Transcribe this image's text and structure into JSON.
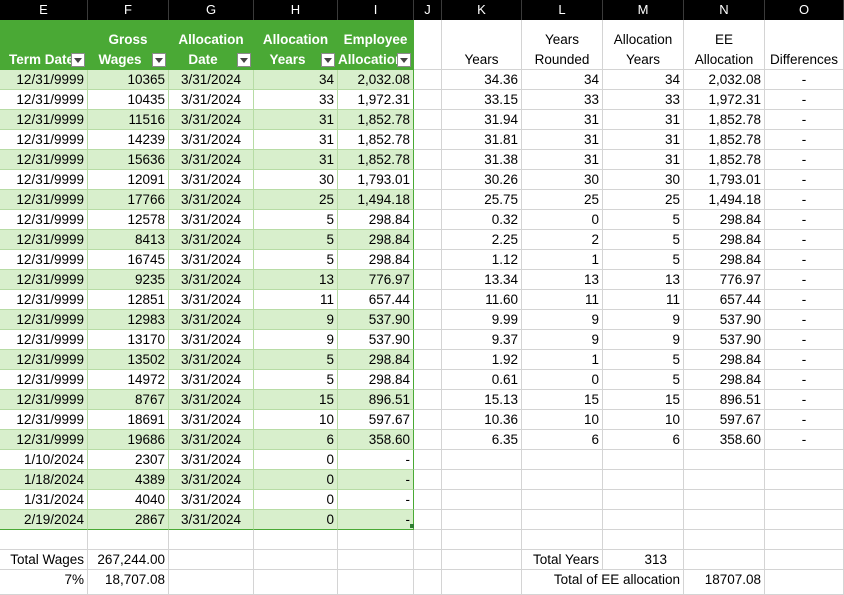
{
  "column_letters": [
    "E",
    "F",
    "G",
    "H",
    "I",
    "J",
    "K",
    "L",
    "M",
    "N",
    "O"
  ],
  "table_headers": [
    {
      "line1": "",
      "line2": "Term Date"
    },
    {
      "line1": "Gross",
      "line2": "Wages"
    },
    {
      "line1": "Allocation",
      "line2": "Date"
    },
    {
      "line1": "Allocation",
      "line2": "Years"
    },
    {
      "line1": "Employee",
      "line2": "Allocation"
    }
  ],
  "side_headers": [
    {
      "line1": "",
      "line2": "Years"
    },
    {
      "line1": "Years",
      "line2": "Rounded"
    },
    {
      "line1": "Allocation",
      "line2": "Years"
    },
    {
      "line1": "EE",
      "line2": "Allocation"
    },
    {
      "line1": "",
      "line2": "Differences"
    }
  ],
  "rows": [
    [
      "12/31/9999",
      "10365",
      "3/31/2024",
      "34",
      "2,032.08",
      "34.36",
      "34",
      "34",
      "2,032.08",
      "-"
    ],
    [
      "12/31/9999",
      "10435",
      "3/31/2024",
      "33",
      "1,972.31",
      "33.15",
      "33",
      "33",
      "1,972.31",
      "-"
    ],
    [
      "12/31/9999",
      "11516",
      "3/31/2024",
      "31",
      "1,852.78",
      "31.94",
      "31",
      "31",
      "1,852.78",
      "-"
    ],
    [
      "12/31/9999",
      "14239",
      "3/31/2024",
      "31",
      "1,852.78",
      "31.81",
      "31",
      "31",
      "1,852.78",
      "-"
    ],
    [
      "12/31/9999",
      "15636",
      "3/31/2024",
      "31",
      "1,852.78",
      "31.38",
      "31",
      "31",
      "1,852.78",
      "-"
    ],
    [
      "12/31/9999",
      "12091",
      "3/31/2024",
      "30",
      "1,793.01",
      "30.26",
      "30",
      "30",
      "1,793.01",
      "-"
    ],
    [
      "12/31/9999",
      "17766",
      "3/31/2024",
      "25",
      "1,494.18",
      "25.75",
      "25",
      "25",
      "1,494.18",
      "-"
    ],
    [
      "12/31/9999",
      "12578",
      "3/31/2024",
      "5",
      "298.84",
      "0.32",
      "0",
      "5",
      "298.84",
      "-"
    ],
    [
      "12/31/9999",
      "8413",
      "3/31/2024",
      "5",
      "298.84",
      "2.25",
      "2",
      "5",
      "298.84",
      "-"
    ],
    [
      "12/31/9999",
      "16745",
      "3/31/2024",
      "5",
      "298.84",
      "1.12",
      "1",
      "5",
      "298.84",
      "-"
    ],
    [
      "12/31/9999",
      "9235",
      "3/31/2024",
      "13",
      "776.97",
      "13.34",
      "13",
      "13",
      "776.97",
      "-"
    ],
    [
      "12/31/9999",
      "12851",
      "3/31/2024",
      "11",
      "657.44",
      "11.60",
      "11",
      "11",
      "657.44",
      "-"
    ],
    [
      "12/31/9999",
      "12983",
      "3/31/2024",
      "9",
      "537.90",
      "9.99",
      "9",
      "9",
      "537.90",
      "-"
    ],
    [
      "12/31/9999",
      "13170",
      "3/31/2024",
      "9",
      "537.90",
      "9.37",
      "9",
      "9",
      "537.90",
      "-"
    ],
    [
      "12/31/9999",
      "13502",
      "3/31/2024",
      "5",
      "298.84",
      "1.92",
      "1",
      "5",
      "298.84",
      "-"
    ],
    [
      "12/31/9999",
      "14972",
      "3/31/2024",
      "5",
      "298.84",
      "0.61",
      "0",
      "5",
      "298.84",
      "-"
    ],
    [
      "12/31/9999",
      "8767",
      "3/31/2024",
      "15",
      "896.51",
      "15.13",
      "15",
      "15",
      "896.51",
      "-"
    ],
    [
      "12/31/9999",
      "18691",
      "3/31/2024",
      "10",
      "597.67",
      "10.36",
      "10",
      "10",
      "597.67",
      "-"
    ],
    [
      "12/31/9999",
      "19686",
      "3/31/2024",
      "6",
      "358.60",
      "6.35",
      "6",
      "6",
      "358.60",
      "-"
    ],
    [
      "1/10/2024",
      "2307",
      "3/31/2024",
      "0",
      "-",
      "",
      "",
      "",
      "",
      ""
    ],
    [
      "1/18/2024",
      "4389",
      "3/31/2024",
      "0",
      "-",
      "",
      "",
      "",
      "",
      ""
    ],
    [
      "1/31/2024",
      "4040",
      "3/31/2024",
      "0",
      "-",
      "",
      "",
      "",
      "",
      ""
    ],
    [
      "2/19/2024",
      "2867",
      "3/31/2024",
      "0",
      "-",
      "",
      "",
      "",
      "",
      ""
    ]
  ],
  "footer": {
    "total_wages_label": "Total Wages",
    "total_wages_value": "267,244.00",
    "pct_label": "7%",
    "pct_value": "18,707.08",
    "total_years_label": "Total Years",
    "total_years_value": "313",
    "total_ee_label": "Total of EE allocation",
    "total_ee_value": "18707.08"
  },
  "colors": {
    "header_green": "#4aa935",
    "band_green": "#d8efcc",
    "column_header_bg": "#000000"
  }
}
